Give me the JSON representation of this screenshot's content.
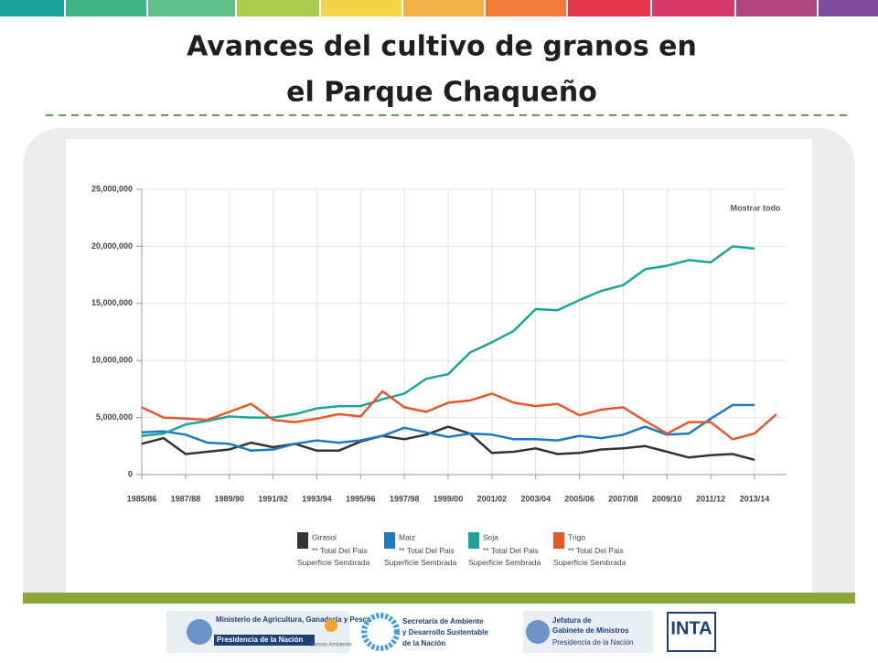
{
  "slide": {
    "title_lines": [
      "Avances del cultivo de granos en",
      "el Parque Chaqueño"
    ]
  },
  "chart_data": {
    "type": "line",
    "button": "Mostrar todo",
    "categories": [
      "1985/86",
      null,
      "1987/88",
      null,
      "1989/90",
      null,
      "1991/92",
      null,
      "1993/94",
      null,
      "1995/96",
      null,
      "1997/98",
      null,
      "1999/00",
      null,
      "2001/02",
      null,
      "2003/04",
      null,
      "2005/06",
      null,
      "2007/08",
      null,
      "2009/10",
      null,
      "2011/12",
      null,
      "2013/14",
      null
    ],
    "legend_note": "** Total Del Pais Superficie Sembrada",
    "series": [
      {
        "name": "Girasol",
        "color": "#333333",
        "values": [
          2700000,
          3200000,
          1800000,
          2000000,
          2200000,
          2800000,
          2400000,
          2700000,
          2100000,
          2100000,
          2900000,
          3400000,
          3100000,
          3500000,
          4200000,
          3600000,
          1900000,
          2000000,
          2300000,
          1800000,
          1900000,
          2200000,
          2300000,
          2500000,
          2000000,
          1500000,
          1700000,
          1800000,
          1300000,
          null
        ]
      },
      {
        "name": "Maiz",
        "color": "#1f78c1",
        "values": [
          3700000,
          3800000,
          3500000,
          2800000,
          2700000,
          2100000,
          2200000,
          2700000,
          3000000,
          2800000,
          3000000,
          3400000,
          4100000,
          3700000,
          3300000,
          3600000,
          3500000,
          3100000,
          3100000,
          3000000,
          3400000,
          3200000,
          3500000,
          4200000,
          3500000,
          3600000,
          4900000,
          6100000,
          6100000,
          null
        ]
      },
      {
        "name": "Soja",
        "color": "#1aa59a",
        "values": [
          3400000,
          3600000,
          4400000,
          4700000,
          5100000,
          5000000,
          5000000,
          5300000,
          5800000,
          6000000,
          6000000,
          6600000,
          7100000,
          8400000,
          8800000,
          10700000,
          11600000,
          12600000,
          14500000,
          14400000,
          15300000,
          16100000,
          16600000,
          18000000,
          18300000,
          18800000,
          18600000,
          20000000,
          19800000,
          null
        ]
      },
      {
        "name": "Trigo",
        "color": "#e8572a",
        "values": [
          5900000,
          5000000,
          4900000,
          4800000,
          5500000,
          6200000,
          4800000,
          4600000,
          4900000,
          5300000,
          5100000,
          7300000,
          5900000,
          5500000,
          6300000,
          6500000,
          7100000,
          6300000,
          6000000,
          6200000,
          5200000,
          5700000,
          5900000,
          4700000,
          3600000,
          4600000,
          4600000,
          3100000,
          3600000,
          5300000
        ]
      }
    ],
    "ylim": [
      0,
      25000000
    ],
    "yticks": [
      0,
      {
        "value": 5000000,
        "label": "5,000,000"
      },
      {
        "value": 10000000,
        "label": "10,000,000"
      },
      {
        "value": 15000000,
        "label": "15,000,000"
      },
      {
        "value": 20000000,
        "label": "20,000,000"
      },
      {
        "value": 25000000,
        "label": "25,000,000"
      }
    ],
    "grid": true
  },
  "footer": {
    "ministerio": "Ministerio de Agricultura, Ganadería y Pesca",
    "presidencia": "Presidencia de la Nación",
    "somos": "Somos Ambiente",
    "secretaria_1": "Secretaría de Ambiente",
    "secretaria_2": "y Desarrollo Sustentable",
    "secretaria_3": "de la Nación",
    "jefatura_1": "Jefatura de",
    "jefatura_2": "Gabinete de Ministros",
    "jefatura_3": "Presidencia de la Nación",
    "inta": "INTA"
  }
}
